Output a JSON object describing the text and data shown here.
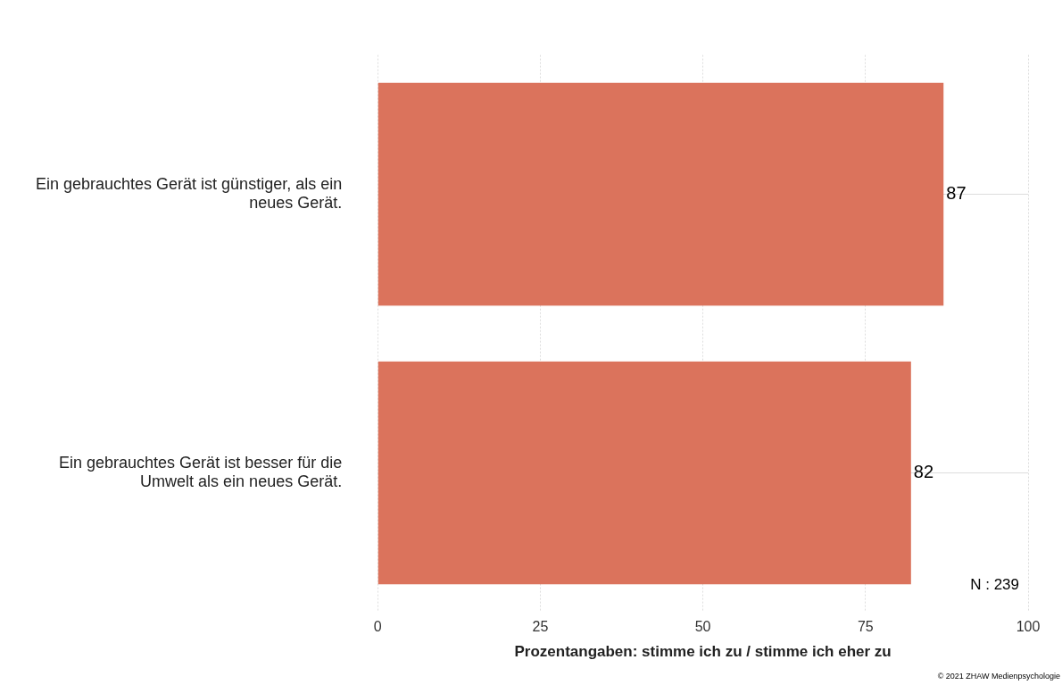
{
  "chart_data": {
    "type": "bar",
    "orientation": "horizontal",
    "categories": [
      "Ein gebrauchtes Gerät ist günstiger, als ein neues Gerät.",
      "Ein gebrauchtes Gerät ist besser für die Umwelt als ein neues Gerät."
    ],
    "values": [
      87,
      82
    ],
    "color": "#db735c",
    "xlim": [
      0,
      100
    ],
    "xticks": [
      0,
      25,
      50,
      75,
      100
    ],
    "xlabel": "Prozentangaben: stimme ich zu / stimme ich eher zu",
    "data_labels": true,
    "grid": true,
    "legend": false,
    "annotations": [
      "N : 239",
      "© 2021 ZHAW Medienpsychologie"
    ]
  }
}
